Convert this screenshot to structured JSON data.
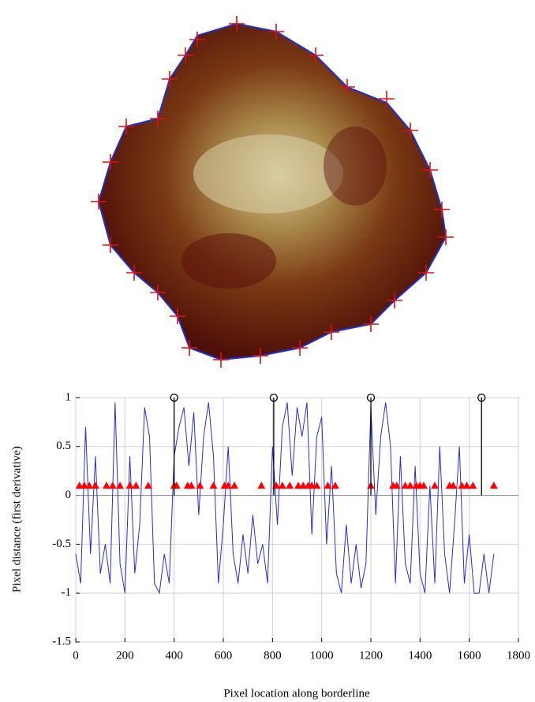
{
  "chart_data": {
    "type": "line",
    "xlabel": "Pixel location along borderline",
    "ylabel": "Pixel distance (first derivative)",
    "xlim": [
      0,
      1800
    ],
    "xticks": [
      0,
      200,
      400,
      600,
      800,
      1000,
      1200,
      1400,
      1600,
      1800
    ],
    "ylim": [
      -1.5,
      1
    ],
    "yticks": [
      -1.5,
      -1,
      -0.5,
      0,
      0.5,
      1
    ],
    "grid": true,
    "series": [
      {
        "style": "line",
        "color": "#2b2bd6",
        "x": [
          0,
          20,
          40,
          60,
          80,
          100,
          120,
          140,
          160,
          180,
          200,
          220,
          240,
          260,
          280,
          300,
          320,
          340,
          360,
          380,
          400,
          420,
          440,
          460,
          480,
          500,
          520,
          540,
          560,
          580,
          600,
          620,
          640,
          660,
          680,
          700,
          720,
          740,
          760,
          780,
          800,
          820,
          840,
          860,
          880,
          900,
          920,
          940,
          960,
          980,
          1000,
          1020,
          1040,
          1060,
          1080,
          1100,
          1120,
          1140,
          1160,
          1180,
          1200,
          1220,
          1240,
          1260,
          1280,
          1300,
          1320,
          1340,
          1360,
          1380,
          1400,
          1420,
          1440,
          1460,
          1480,
          1500,
          1520,
          1540,
          1560,
          1580,
          1600,
          1620,
          1640,
          1660,
          1680,
          1700
        ],
        "values": [
          -0.6,
          -0.9,
          0.7,
          -0.6,
          0.4,
          -0.8,
          -0.5,
          -0.9,
          0.95,
          -0.7,
          -1,
          0.4,
          -0.8,
          -0.3,
          0.9,
          0.6,
          -0.9,
          -1,
          -0.6,
          -0.9,
          0.4,
          0.7,
          0.9,
          0.3,
          0.85,
          -0.2,
          0.6,
          0.95,
          0.4,
          -0.9,
          -0.3,
          0.5,
          -0.6,
          -0.9,
          -0.4,
          -0.8,
          -0.2,
          -0.7,
          -0.5,
          -0.9,
          0.5,
          -0.3,
          0.7,
          0.95,
          0.2,
          0.9,
          0.6,
          0.95,
          -0.4,
          0.6,
          0.8,
          -0.5,
          0.3,
          -0.8,
          -1,
          -0.3,
          -0.9,
          -0.5,
          -0.95,
          -0.7,
          0.9,
          -0.2,
          0.6,
          0.95,
          0.5,
          -0.9,
          0.4,
          -0.7,
          -0.9,
          0.3,
          -0.8,
          -1,
          0.1,
          -0.9,
          0.5,
          -0.6,
          -1,
          -0.3,
          0.5,
          -0.9,
          -0.4,
          -1,
          -1,
          -0.6,
          -1,
          -0.6
        ]
      },
      {
        "style": "triangle",
        "color": "#ff0000",
        "x": [
          15,
          35,
          55,
          80,
          125,
          150,
          180,
          220,
          245,
          295,
          400,
          410,
          455,
          470,
          505,
          560,
          605,
          620,
          645,
          755,
          815,
          840,
          870,
          905,
          925,
          945,
          960,
          980,
          1025,
          1055,
          1200,
          1290,
          1305,
          1340,
          1360,
          1385,
          1400,
          1415,
          1460,
          1520,
          1535,
          1570,
          1590,
          1615,
          1700
        ],
        "values": [
          0.1,
          0.1,
          0.1,
          0.1,
          0.1,
          0.1,
          0.1,
          0.1,
          0.1,
          0.1,
          0.1,
          0.1,
          0.1,
          0.1,
          0.1,
          0.1,
          0.1,
          0.1,
          0.1,
          0.1,
          0.1,
          0.1,
          0.1,
          0.1,
          0.1,
          0.1,
          0.1,
          0.1,
          0.1,
          0.1,
          0.1,
          0.1,
          0.1,
          0.1,
          0.1,
          0.1,
          0.1,
          0.1,
          0.1,
          0.1,
          0.1,
          0.1,
          0.1,
          0.1,
          0.1
        ]
      },
      {
        "style": "stem",
        "color": "#000000",
        "x": [
          400,
          805,
          1200,
          1650
        ],
        "values": [
          1,
          1,
          1,
          1
        ]
      }
    ]
  }
}
